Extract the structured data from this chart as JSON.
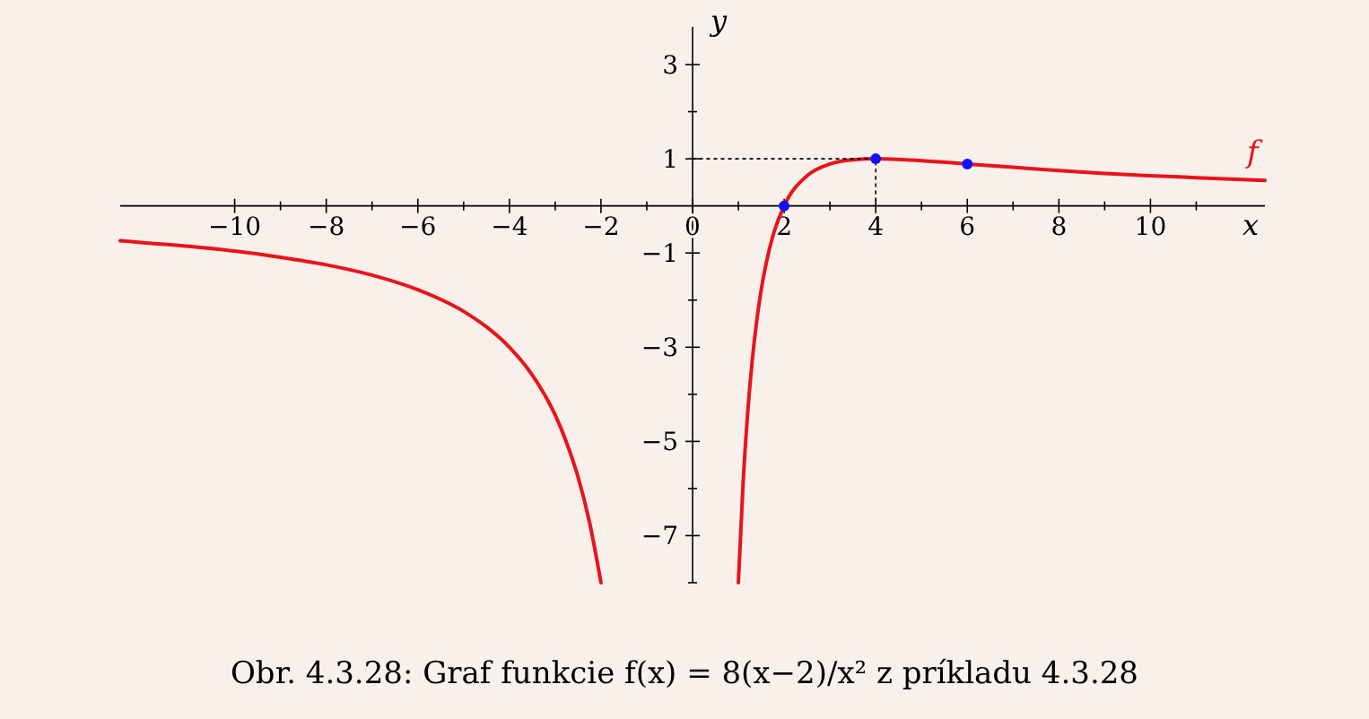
{
  "chart_data": {
    "type": "line",
    "annotations": [
      "Obr. 4.3.28: Graf funkcie f(x) = 8(x−2)/x² z príkladu 4.3.28"
    ],
    "xlabel": "x",
    "ylabel": "y",
    "xlim": [
      -12.5,
      12.5
    ],
    "ylim": [
      -8,
      3.8
    ],
    "xticks": [
      -10,
      {
        "value": -9,
        "label": null
      },
      -8,
      {
        "value": -7,
        "label": null
      },
      -6,
      {
        "value": -5,
        "label": null
      },
      -4,
      {
        "value": -3,
        "label": null
      },
      -2,
      {
        "value": -1,
        "label": null
      },
      0,
      {
        "value": 1,
        "label": null
      },
      2,
      {
        "value": 3,
        "label": null
      },
      4,
      {
        "value": 5,
        "label": null
      },
      6,
      {
        "value": 7,
        "label": null
      },
      8,
      {
        "value": 9,
        "label": null
      },
      10,
      {
        "value": 11,
        "label": null
      }
    ],
    "yticks": [
      {
        "value": -8,
        "label": null
      },
      -7,
      {
        "value": -6,
        "label": null
      },
      -5,
      {
        "value": -4,
        "label": null
      },
      -3,
      {
        "value": -2,
        "label": null
      },
      -1,
      1,
      {
        "value": 2,
        "label": null
      },
      3
    ],
    "grid": false,
    "series": [
      {
        "name": "f",
        "color": "#e8141b",
        "line_style": "solid",
        "marker": "none",
        "x": [
          -12.5,
          -12,
          -11,
          -10,
          -9,
          -8,
          -7,
          -6,
          -5,
          -4.5,
          -4,
          -3.5,
          -3,
          -2.75,
          -2.5,
          -2.25,
          -2,
          null,
          1,
          1.1,
          1.2,
          1.3,
          1.4,
          1.5,
          1.75,
          2,
          2.5,
          3,
          3.5,
          4,
          5,
          6,
          7,
          8,
          9,
          10,
          11,
          12,
          12.5
        ],
        "values": [
          -0.74,
          -0.78,
          -0.86,
          -0.96,
          -1.09,
          -1.25,
          -1.47,
          -1.78,
          -2.24,
          -2.57,
          -3,
          -3.59,
          -4.44,
          -5.03,
          -5.76,
          -6.72,
          -8,
          null,
          -8,
          -5.95,
          -4.44,
          -3.31,
          -2.45,
          -1.78,
          -0.65,
          0,
          0.64,
          0.89,
          0.98,
          1,
          0.96,
          0.89,
          0.82,
          0.75,
          0.69,
          0.64,
          0.6,
          0.56,
          0.54
        ]
      },
      {
        "type": "line",
        "color": "#000000",
        "line_style": "dotted",
        "marker": "none",
        "x": [
          0,
          4,
          4
        ],
        "values": [
          1,
          1,
          0
        ]
      },
      {
        "type": "scatter",
        "color": "#1010ff",
        "marker": "circle",
        "x": [
          2,
          4,
          6
        ],
        "values": [
          0,
          1,
          0.89
        ]
      }
    ]
  }
}
